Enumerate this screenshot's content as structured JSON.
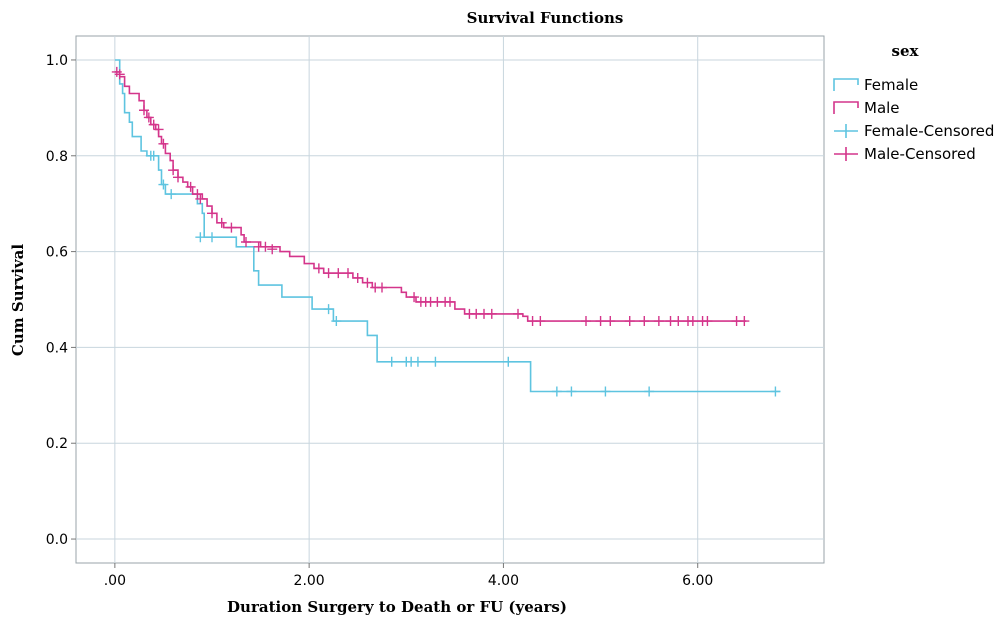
{
  "chart_data": {
    "type": "line",
    "step": true,
    "title": "Survival Functions",
    "xlabel": "Duration Surgery to Death or FU (years)",
    "ylabel": "Cum Survival",
    "xlim": [
      -0.4,
      7.3
    ],
    "ylim": [
      -0.05,
      1.05
    ],
    "xticks": [
      0,
      2,
      4,
      6
    ],
    "xtick_labels": [
      ".00",
      "2.00",
      "4.00",
      "6.00"
    ],
    "yticks": [
      0,
      0.2,
      0.4,
      0.6,
      0.8,
      1.0
    ],
    "ytick_labels": [
      "0.0",
      "0.2",
      "0.4",
      "0.6",
      "0.8",
      "1.0"
    ],
    "grid": true,
    "legend_title": "sex",
    "legend_position": "top-right",
    "legend_entries": [
      "Female",
      "Male",
      "Female-Censored",
      "Male-Censored"
    ],
    "series": [
      {
        "name": "Female",
        "color": "#5ec4e0",
        "steps": [
          [
            0,
            1.0
          ],
          [
            0.05,
            0.95
          ],
          [
            0.08,
            0.93
          ],
          [
            0.1,
            0.89
          ],
          [
            0.15,
            0.87
          ],
          [
            0.18,
            0.84
          ],
          [
            0.27,
            0.81
          ],
          [
            0.33,
            0.8
          ],
          [
            0.45,
            0.77
          ],
          [
            0.48,
            0.74
          ],
          [
            0.52,
            0.72
          ],
          [
            0.85,
            0.7
          ],
          [
            0.9,
            0.68
          ],
          [
            0.92,
            0.63
          ],
          [
            1.25,
            0.61
          ],
          [
            1.43,
            0.56
          ],
          [
            1.48,
            0.53
          ],
          [
            1.72,
            0.505
          ],
          [
            2.03,
            0.48
          ],
          [
            2.25,
            0.455
          ],
          [
            2.6,
            0.425
          ],
          [
            2.7,
            0.37
          ],
          [
            4.28,
            0.308
          ],
          [
            6.85,
            0.308
          ]
        ],
        "censored": [
          [
            0.37,
            0.8
          ],
          [
            0.4,
            0.8
          ],
          [
            0.5,
            0.74
          ],
          [
            0.58,
            0.72
          ],
          [
            0.88,
            0.63
          ],
          [
            1.0,
            0.63
          ],
          [
            2.2,
            0.48
          ],
          [
            2.28,
            0.455
          ],
          [
            2.85,
            0.37
          ],
          [
            3.0,
            0.37
          ],
          [
            3.05,
            0.37
          ],
          [
            3.12,
            0.37
          ],
          [
            3.3,
            0.37
          ],
          [
            4.05,
            0.37
          ],
          [
            4.55,
            0.308
          ],
          [
            4.7,
            0.308
          ],
          [
            5.05,
            0.308
          ],
          [
            5.5,
            0.308
          ],
          [
            6.8,
            0.308
          ]
        ]
      },
      {
        "name": "Male",
        "color": "#d4358b",
        "steps": [
          [
            0,
            0.975
          ],
          [
            0.05,
            0.965
          ],
          [
            0.1,
            0.945
          ],
          [
            0.15,
            0.93
          ],
          [
            0.25,
            0.915
          ],
          [
            0.3,
            0.895
          ],
          [
            0.33,
            0.88
          ],
          [
            0.37,
            0.865
          ],
          [
            0.42,
            0.855
          ],
          [
            0.45,
            0.84
          ],
          [
            0.48,
            0.825
          ],
          [
            0.52,
            0.805
          ],
          [
            0.57,
            0.79
          ],
          [
            0.6,
            0.77
          ],
          [
            0.65,
            0.755
          ],
          [
            0.7,
            0.745
          ],
          [
            0.75,
            0.735
          ],
          [
            0.8,
            0.72
          ],
          [
            0.9,
            0.71
          ],
          [
            0.95,
            0.695
          ],
          [
            1.0,
            0.68
          ],
          [
            1.05,
            0.66
          ],
          [
            1.12,
            0.65
          ],
          [
            1.3,
            0.635
          ],
          [
            1.33,
            0.62
          ],
          [
            1.5,
            0.61
          ],
          [
            1.7,
            0.6
          ],
          [
            1.8,
            0.59
          ],
          [
            1.95,
            0.575
          ],
          [
            2.05,
            0.565
          ],
          [
            2.15,
            0.555
          ],
          [
            2.45,
            0.545
          ],
          [
            2.55,
            0.535
          ],
          [
            2.65,
            0.525
          ],
          [
            2.95,
            0.515
          ],
          [
            3.0,
            0.505
          ],
          [
            3.1,
            0.495
          ],
          [
            3.5,
            0.48
          ],
          [
            3.6,
            0.47
          ],
          [
            4.2,
            0.465
          ],
          [
            4.25,
            0.455
          ],
          [
            6.5,
            0.455
          ]
        ],
        "censored": [
          [
            0.02,
            0.975
          ],
          [
            0.05,
            0.97
          ],
          [
            0.3,
            0.895
          ],
          [
            0.35,
            0.88
          ],
          [
            0.4,
            0.865
          ],
          [
            0.45,
            0.855
          ],
          [
            0.5,
            0.825
          ],
          [
            0.6,
            0.77
          ],
          [
            0.65,
            0.755
          ],
          [
            0.78,
            0.735
          ],
          [
            0.85,
            0.72
          ],
          [
            0.88,
            0.71
          ],
          [
            1.0,
            0.68
          ],
          [
            1.1,
            0.66
          ],
          [
            1.2,
            0.65
          ],
          [
            1.35,
            0.62
          ],
          [
            1.48,
            0.61
          ],
          [
            1.55,
            0.61
          ],
          [
            1.62,
            0.605
          ],
          [
            2.1,
            0.565
          ],
          [
            2.2,
            0.555
          ],
          [
            2.3,
            0.555
          ],
          [
            2.4,
            0.555
          ],
          [
            2.5,
            0.545
          ],
          [
            2.6,
            0.535
          ],
          [
            2.68,
            0.525
          ],
          [
            2.75,
            0.525
          ],
          [
            3.08,
            0.505
          ],
          [
            3.15,
            0.495
          ],
          [
            3.2,
            0.495
          ],
          [
            3.25,
            0.495
          ],
          [
            3.32,
            0.495
          ],
          [
            3.4,
            0.495
          ],
          [
            3.45,
            0.495
          ],
          [
            3.65,
            0.47
          ],
          [
            3.72,
            0.47
          ],
          [
            3.8,
            0.47
          ],
          [
            3.88,
            0.47
          ],
          [
            4.15,
            0.47
          ],
          [
            4.3,
            0.455
          ],
          [
            4.38,
            0.455
          ],
          [
            4.85,
            0.455
          ],
          [
            5.0,
            0.455
          ],
          [
            5.1,
            0.455
          ],
          [
            5.3,
            0.455
          ],
          [
            5.45,
            0.455
          ],
          [
            5.6,
            0.455
          ],
          [
            5.72,
            0.455
          ],
          [
            5.8,
            0.455
          ],
          [
            5.9,
            0.455
          ],
          [
            5.95,
            0.455
          ],
          [
            6.05,
            0.455
          ],
          [
            6.1,
            0.455
          ],
          [
            6.4,
            0.455
          ],
          [
            6.48,
            0.455
          ]
        ]
      }
    ]
  }
}
